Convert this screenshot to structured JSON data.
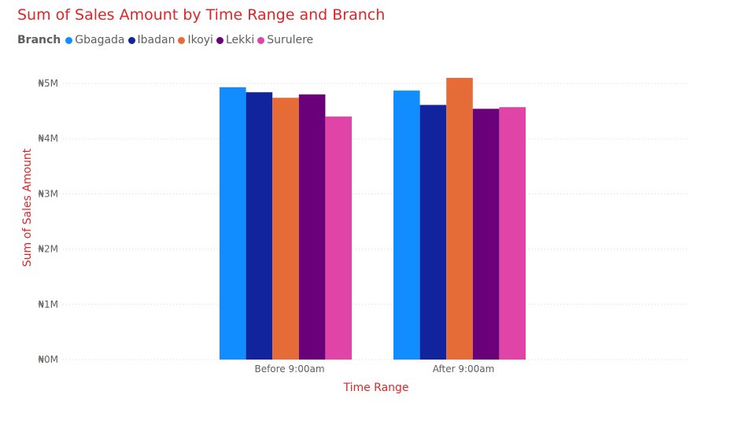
{
  "chart_data": {
    "type": "bar",
    "title": "Sum of Sales Amount by Time Range and Branch",
    "xlabel": "Time Range",
    "ylabel": "Sum of Sales Amount",
    "legend_title": "Branch",
    "legend_position": "top-left",
    "grid": true,
    "categories": [
      "Before 9:00am",
      "After 9:00am"
    ],
    "ylim": [
      0,
      5000000
    ],
    "y_ticks": [
      0,
      1000000,
      2000000,
      3000000,
      4000000,
      5000000
    ],
    "y_tick_labels": [
      "₦0M",
      "₦1M",
      "₦2M",
      "₦3M",
      "₦4M",
      "₦5M"
    ],
    "series": [
      {
        "name": "Gbagada",
        "color": "#118dff",
        "values": [
          4930000,
          4870000
        ]
      },
      {
        "name": "Ibadan",
        "color": "#12239e",
        "values": [
          4840000,
          4610000
        ]
      },
      {
        "name": "Ikoyi",
        "color": "#e66c37",
        "values": [
          4740000,
          5100000
        ]
      },
      {
        "name": "Lekki",
        "color": "#6b007b",
        "values": [
          4800000,
          4540000
        ]
      },
      {
        "name": "Surulere",
        "color": "#e044a7",
        "values": [
          4400000,
          4570000
        ]
      }
    ]
  }
}
